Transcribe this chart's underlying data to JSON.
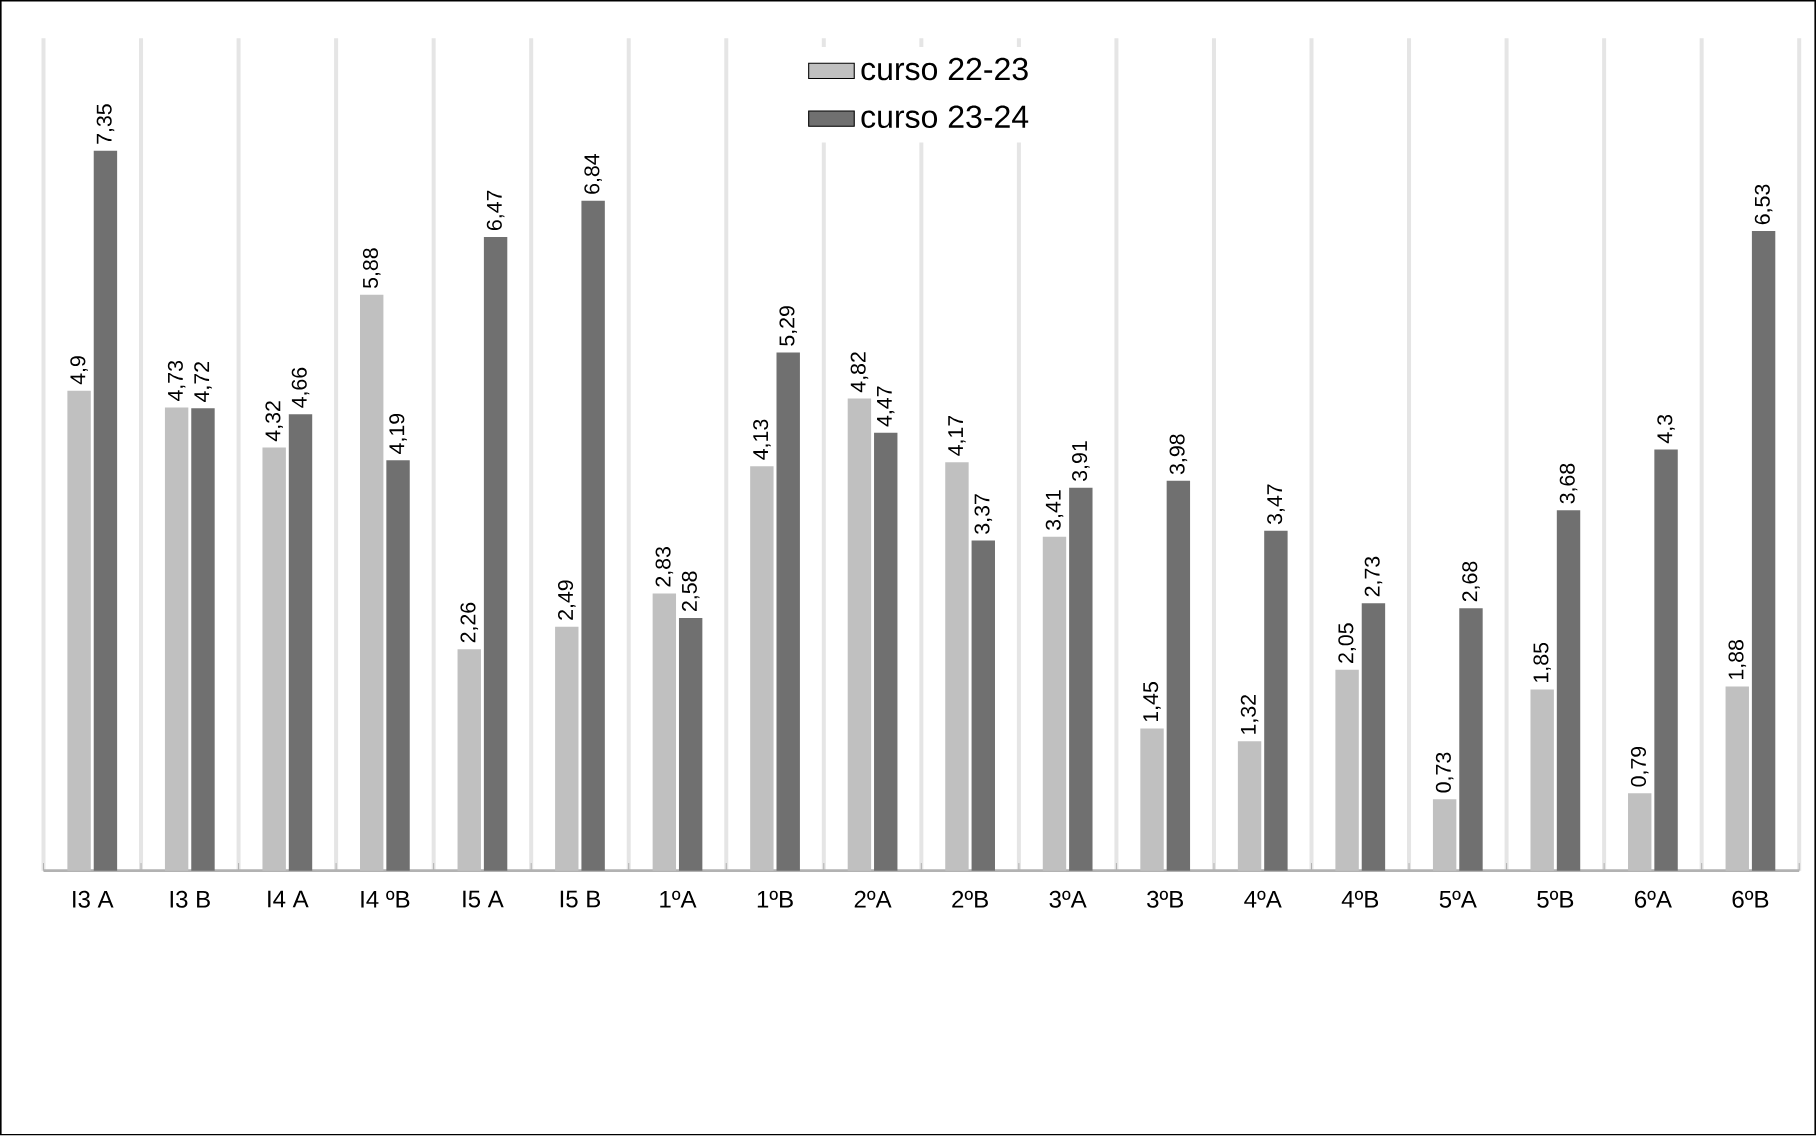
{
  "chart_data": {
    "type": "bar",
    "categories": [
      "I3 A",
      "I3 B",
      "I4 A",
      "I4 ºB",
      "I5 A",
      "I5 B",
      "1ºA",
      "1ºB",
      "2ºA",
      "2ºB",
      "3ºA",
      "3ºB",
      "4ºA",
      "4ºB",
      "5ºA",
      "5ºB",
      "6ºA",
      "6ºB"
    ],
    "series": [
      {
        "name": "curso 22-23",
        "color": "#c0c0c0",
        "values": [
          4.9,
          4.73,
          4.32,
          5.88,
          2.26,
          2.49,
          2.83,
          4.13,
          4.82,
          4.17,
          3.41,
          1.45,
          1.32,
          2.05,
          0.73,
          1.85,
          0.79,
          1.88
        ],
        "value_labels": [
          "4,9",
          "4,73",
          "4,32",
          "5,88",
          "2,26",
          "2,49",
          "2,83",
          "4,13",
          "4,82",
          "4,17",
          "3,41",
          "1,45",
          "1,32",
          "2,05",
          "0,73",
          "1,85",
          "0,79",
          "1,88"
        ]
      },
      {
        "name": "curso 23-24",
        "color": "#707070",
        "values": [
          7.35,
          4.72,
          4.66,
          4.19,
          6.47,
          6.84,
          2.58,
          5.29,
          4.47,
          3.37,
          3.91,
          3.98,
          3.47,
          2.73,
          2.68,
          3.68,
          4.3,
          6.53
        ],
        "value_labels": [
          "7,35",
          "4,72",
          "4,66",
          "4,19",
          "6,47",
          "6,84",
          "2,58",
          "5,29",
          "4,47",
          "3,37",
          "3,91",
          "3,98",
          "3,47",
          "2,73",
          "2,68",
          "3,68",
          "4,3",
          "6,53"
        ]
      }
    ],
    "ylim": [
      0,
      8.5
    ],
    "tick_labels": "x",
    "grid": "x",
    "legend": "top"
  }
}
